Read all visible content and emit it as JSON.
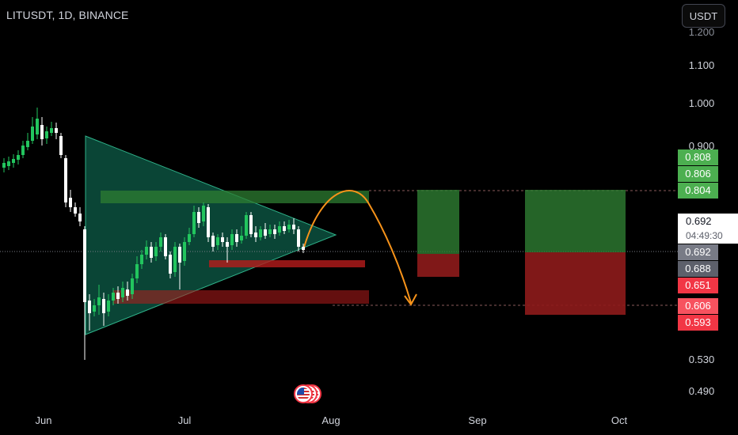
{
  "header": {
    "symbol": "LITUSDT, 1D, BINANCE",
    "currency_button": "USDT"
  },
  "price_axis": {
    "ticks": [
      "1.200",
      "1.100",
      "1.000",
      "0.900",
      "0.530",
      "0.490"
    ],
    "badges": {
      "long_tp_top": "0.808",
      "short_tp_mid": "0.806",
      "entry_top": "0.804",
      "last_price": "0.692",
      "countdown": "04:49:30",
      "crosshair_price": "0.692",
      "level_mid": "0.688",
      "stop_short": "0.651",
      "target_low": "0.606",
      "stop_low": "0.593"
    }
  },
  "time_axis": {
    "labels": [
      "Jun",
      "Jul",
      "Aug",
      "Sep",
      "Oct"
    ]
  },
  "colors": {
    "bull": "#22c55e",
    "bear": "#ffffff",
    "triangle_fill": "#0d5c48",
    "triangle_edge": "#2fb38a",
    "zone_green": "#2e7d32",
    "zone_red": "#8e1b1b",
    "arrow": "#f7931a",
    "badge_green": "#4caf50",
    "badge_red": "#f23645"
  },
  "events": {
    "icon": "us-flag-icon"
  }
}
